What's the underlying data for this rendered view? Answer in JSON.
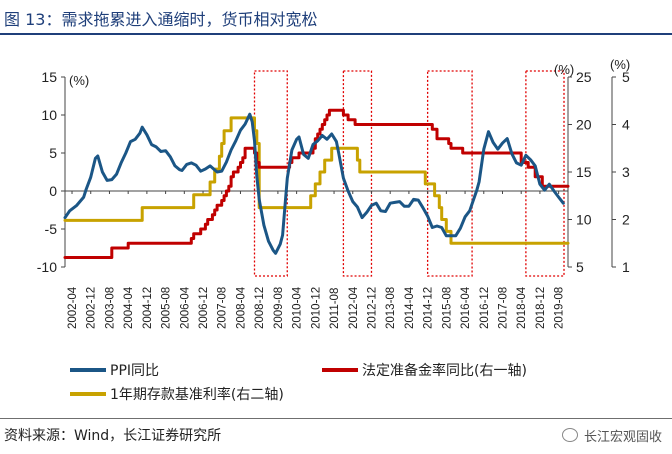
{
  "figure": {
    "title": "图 13：需求拖累进入通缩时，货币相对宽松",
    "source": "资料来源：Wind，长江证券研究所",
    "watermark": "长江宏观固收"
  },
  "chart_data": {
    "type": "line",
    "x_ticks": [
      "2002-04",
      "2002-12",
      "2003-08",
      "2004-04",
      "2004-12",
      "2005-08",
      "2006-04",
      "2006-12",
      "2007-08",
      "2008-04",
      "2008-12",
      "2009-08",
      "2010-04",
      "2010-12",
      "2011-08",
      "2012-04",
      "2012-12",
      "2013-08",
      "2014-04",
      "2014-12",
      "2015-08",
      "2016-04",
      "2016-12",
      "2017-08",
      "2018-04",
      "2018-12",
      "2019-08"
    ],
    "x_range": [
      "2002-01",
      "2019-12"
    ],
    "left_axis": {
      "unit": "(%)",
      "ticks": [
        -10,
        -5,
        0,
        5,
        10,
        15
      ],
      "range": [
        -10,
        15
      ]
    },
    "right_axis_1": {
      "unit": "(%)",
      "ticks": [
        5,
        10,
        15,
        20,
        25
      ],
      "range": [
        5,
        25
      ]
    },
    "right_axis_2": {
      "unit": "(%)",
      "ticks": [
        1,
        2,
        3,
        4,
        5
      ],
      "range": [
        1,
        5
      ]
    },
    "legend": [
      "PPI同比",
      "法定准备金率同比(右一轴)",
      "1年期存款基准利率(右二轴)"
    ],
    "colors": {
      "ppi": "#1b5686",
      "rrr": "#c00000",
      "deposit": "#c8a200",
      "boxes": "#e00000"
    },
    "deflation_periods": [
      [
        "2008-10",
        "2009-12"
      ],
      [
        "2011-12",
        "2012-12"
      ],
      [
        "2014-12",
        "2016-07"
      ],
      [
        "2018-06",
        "2019-12"
      ]
    ],
    "series": [
      {
        "name": "PPI同比",
        "axis": "left",
        "points": [
          [
            "2002-01",
            -3.5
          ],
          [
            "2002-03",
            -2.6
          ],
          [
            "2002-06",
            -1.9
          ],
          [
            "2002-09",
            -0.8
          ],
          [
            "2002-10",
            0.2
          ],
          [
            "2002-12",
            1.8
          ],
          [
            "2003-02",
            4.3
          ],
          [
            "2003-03",
            4.6
          ],
          [
            "2003-05",
            2.5
          ],
          [
            "2003-07",
            1.4
          ],
          [
            "2003-09",
            1.5
          ],
          [
            "2003-11",
            2.2
          ],
          [
            "2004-01",
            3.7
          ],
          [
            "2004-03",
            5.0
          ],
          [
            "2004-05",
            6.5
          ],
          [
            "2004-07",
            6.8
          ],
          [
            "2004-09",
            7.6
          ],
          [
            "2004-10",
            8.4
          ],
          [
            "2004-12",
            7.4
          ],
          [
            "2005-02",
            6.1
          ],
          [
            "2005-04",
            5.8
          ],
          [
            "2005-06",
            5.2
          ],
          [
            "2005-08",
            5.3
          ],
          [
            "2005-10",
            4.5
          ],
          [
            "2005-12",
            3.3
          ],
          [
            "2006-02",
            2.8
          ],
          [
            "2006-03",
            2.7
          ],
          [
            "2006-05",
            3.5
          ],
          [
            "2006-07",
            3.7
          ],
          [
            "2006-09",
            3.4
          ],
          [
            "2006-11",
            2.6
          ],
          [
            "2007-01",
            2.9
          ],
          [
            "2007-03",
            3.3
          ],
          [
            "2007-06",
            2.5
          ],
          [
            "2007-08",
            2.6
          ],
          [
            "2007-10",
            3.8
          ],
          [
            "2007-12",
            5.4
          ],
          [
            "2008-02",
            6.6
          ],
          [
            "2008-04",
            8.0
          ],
          [
            "2008-06",
            8.8
          ],
          [
            "2008-08",
            10.1
          ],
          [
            "2008-09",
            9.1
          ],
          [
            "2008-10",
            6.6
          ],
          [
            "2008-11",
            2.0
          ],
          [
            "2008-12",
            -1.1
          ],
          [
            "2009-02",
            -4.5
          ],
          [
            "2009-04",
            -6.6
          ],
          [
            "2009-06",
            -7.8
          ],
          [
            "2009-07",
            -8.2
          ],
          [
            "2009-09",
            -7.0
          ],
          [
            "2009-10",
            -5.8
          ],
          [
            "2009-11",
            -2.1
          ],
          [
            "2009-12",
            1.7
          ],
          [
            "2010-02",
            5.4
          ],
          [
            "2010-04",
            6.8
          ],
          [
            "2010-05",
            7.1
          ],
          [
            "2010-07",
            4.8
          ],
          [
            "2010-09",
            4.3
          ],
          [
            "2010-11",
            6.1
          ],
          [
            "2011-01",
            6.6
          ],
          [
            "2011-03",
            7.3
          ],
          [
            "2011-05",
            6.8
          ],
          [
            "2011-07",
            7.5
          ],
          [
            "2011-09",
            6.5
          ],
          [
            "2011-10",
            5.0
          ],
          [
            "2011-12",
            1.7
          ],
          [
            "2012-02",
            0.0
          ],
          [
            "2012-04",
            -1.4
          ],
          [
            "2012-06",
            -2.1
          ],
          [
            "2012-08",
            -3.5
          ],
          [
            "2012-10",
            -2.8
          ],
          [
            "2012-12",
            -1.9
          ],
          [
            "2013-02",
            -1.6
          ],
          [
            "2013-04",
            -2.6
          ],
          [
            "2013-06",
            -2.7
          ],
          [
            "2013-08",
            -1.6
          ],
          [
            "2013-10",
            -1.5
          ],
          [
            "2013-12",
            -1.4
          ],
          [
            "2014-02",
            -2.0
          ],
          [
            "2014-04",
            -2.0
          ],
          [
            "2014-06",
            -1.1
          ],
          [
            "2014-08",
            -1.2
          ],
          [
            "2014-10",
            -2.2
          ],
          [
            "2014-12",
            -3.3
          ],
          [
            "2015-02",
            -4.8
          ],
          [
            "2015-04",
            -4.6
          ],
          [
            "2015-06",
            -4.8
          ],
          [
            "2015-08",
            -5.9
          ],
          [
            "2015-10",
            -5.9
          ],
          [
            "2015-12",
            -5.9
          ],
          [
            "2016-02",
            -4.9
          ],
          [
            "2016-04",
            -3.4
          ],
          [
            "2016-06",
            -2.6
          ],
          [
            "2016-08",
            -0.8
          ],
          [
            "2016-09",
            0.1
          ],
          [
            "2016-10",
            1.2
          ],
          [
            "2016-11",
            3.3
          ],
          [
            "2016-12",
            5.5
          ],
          [
            "2017-02",
            7.8
          ],
          [
            "2017-04",
            6.4
          ],
          [
            "2017-06",
            5.5
          ],
          [
            "2017-08",
            6.3
          ],
          [
            "2017-10",
            6.9
          ],
          [
            "2017-12",
            4.9
          ],
          [
            "2018-02",
            3.7
          ],
          [
            "2018-04",
            3.4
          ],
          [
            "2018-06",
            4.7
          ],
          [
            "2018-08",
            4.1
          ],
          [
            "2018-10",
            3.3
          ],
          [
            "2018-12",
            0.9
          ],
          [
            "2019-02",
            0.1
          ],
          [
            "2019-04",
            0.9
          ],
          [
            "2019-06",
            0.0
          ],
          [
            "2019-08",
            -0.8
          ],
          [
            "2019-10",
            -1.6
          ]
        ]
      },
      {
        "name": "法定准备金率同比(右一轴)",
        "axis": "right1",
        "points": [
          [
            "2002-01",
            6.0
          ],
          [
            "2003-09",
            6.0
          ],
          [
            "2003-09",
            7.0
          ],
          [
            "2004-04",
            7.0
          ],
          [
            "2004-04",
            7.5
          ],
          [
            "2006-07",
            7.5
          ],
          [
            "2006-07",
            8.0
          ],
          [
            "2006-08",
            8.0
          ],
          [
            "2006-08",
            8.5
          ],
          [
            "2006-11",
            8.5
          ],
          [
            "2006-11",
            9.0
          ],
          [
            "2007-01",
            9.0
          ],
          [
            "2007-01",
            9.5
          ],
          [
            "2007-02",
            9.5
          ],
          [
            "2007-02",
            10.0
          ],
          [
            "2007-04",
            10.0
          ],
          [
            "2007-04",
            10.5
          ],
          [
            "2007-05",
            10.5
          ],
          [
            "2007-05",
            11.0
          ],
          [
            "2007-06",
            11.0
          ],
          [
            "2007-06",
            11.5
          ],
          [
            "2007-08",
            11.5
          ],
          [
            "2007-08",
            12.0
          ],
          [
            "2007-09",
            12.0
          ],
          [
            "2007-09",
            12.5
          ],
          [
            "2007-10",
            12.5
          ],
          [
            "2007-10",
            13.0
          ],
          [
            "2007-11",
            13.0
          ],
          [
            "2007-11",
            13.5
          ],
          [
            "2007-12",
            13.5
          ],
          [
            "2007-12",
            14.5
          ],
          [
            "2008-01",
            14.5
          ],
          [
            "2008-01",
            15.0
          ],
          [
            "2008-03",
            15.0
          ],
          [
            "2008-03",
            15.5
          ],
          [
            "2008-04",
            15.5
          ],
          [
            "2008-04",
            16.0
          ],
          [
            "2008-05",
            16.0
          ],
          [
            "2008-05",
            16.5
          ],
          [
            "2008-06",
            16.5
          ],
          [
            "2008-06",
            17.5
          ],
          [
            "2008-09",
            17.5
          ],
          [
            "2008-09",
            17.5
          ],
          [
            "2008-10",
            17.5
          ],
          [
            "2008-10",
            17.0
          ],
          [
            "2008-11",
            17.0
          ],
          [
            "2008-11",
            16.0
          ],
          [
            "2008-12",
            16.0
          ],
          [
            "2008-12",
            15.5
          ],
          [
            "2010-01",
            15.5
          ],
          [
            "2010-01",
            16.0
          ],
          [
            "2010-02",
            16.0
          ],
          [
            "2010-02",
            16.5
          ],
          [
            "2010-05",
            16.5
          ],
          [
            "2010-05",
            17.0
          ],
          [
            "2010-11",
            17.0
          ],
          [
            "2010-11",
            17.5
          ],
          [
            "2010-12",
            17.5
          ],
          [
            "2010-12",
            18.5
          ],
          [
            "2011-01",
            18.5
          ],
          [
            "2011-01",
            19.0
          ],
          [
            "2011-02",
            19.0
          ],
          [
            "2011-02",
            19.5
          ],
          [
            "2011-03",
            19.5
          ],
          [
            "2011-03",
            20.0
          ],
          [
            "2011-04",
            20.0
          ],
          [
            "2011-04",
            20.5
          ],
          [
            "2011-05",
            20.5
          ],
          [
            "2011-05",
            21.0
          ],
          [
            "2011-06",
            21.0
          ],
          [
            "2011-06",
            21.5
          ],
          [
            "2011-12",
            21.5
          ],
          [
            "2011-12",
            21.0
          ],
          [
            "2012-02",
            21.0
          ],
          [
            "2012-02",
            20.5
          ],
          [
            "2012-05",
            20.5
          ],
          [
            "2012-05",
            20.0
          ],
          [
            "2015-02",
            20.0
          ],
          [
            "2015-02",
            19.5
          ],
          [
            "2015-04",
            19.5
          ],
          [
            "2015-04",
            18.5
          ],
          [
            "2015-09",
            18.5
          ],
          [
            "2015-09",
            18.0
          ],
          [
            "2015-10",
            18.0
          ],
          [
            "2015-10",
            17.5
          ],
          [
            "2016-03",
            17.5
          ],
          [
            "2016-03",
            17.0
          ],
          [
            "2018-04",
            17.0
          ],
          [
            "2018-04",
            16.0
          ],
          [
            "2018-07",
            16.0
          ],
          [
            "2018-07",
            15.5
          ],
          [
            "2018-10",
            15.5
          ],
          [
            "2018-10",
            14.5
          ],
          [
            "2019-01",
            14.5
          ],
          [
            "2019-01",
            13.5
          ],
          [
            "2019-12",
            13.5
          ]
        ]
      },
      {
        "name": "1年期存款基准利率(右二轴)",
        "axis": "right2",
        "points": [
          [
            "2002-01",
            1.98
          ],
          [
            "2004-10",
            1.98
          ],
          [
            "2004-10",
            2.25
          ],
          [
            "2006-08",
            2.25
          ],
          [
            "2006-08",
            2.52
          ],
          [
            "2007-03",
            2.52
          ],
          [
            "2007-03",
            2.79
          ],
          [
            "2007-05",
            2.79
          ],
          [
            "2007-05",
            3.06
          ],
          [
            "2007-07",
            3.06
          ],
          [
            "2007-07",
            3.33
          ],
          [
            "2007-08",
            3.33
          ],
          [
            "2007-08",
            3.6
          ],
          [
            "2007-09",
            3.6
          ],
          [
            "2007-09",
            3.87
          ],
          [
            "2007-12",
            3.87
          ],
          [
            "2007-12",
            4.14
          ],
          [
            "2008-10",
            4.14
          ],
          [
            "2008-10",
            3.87
          ],
          [
            "2008-11",
            3.87
          ],
          [
            "2008-11",
            3.6
          ],
          [
            "2008-12",
            3.6
          ],
          [
            "2008-12",
            2.52
          ],
          [
            "2008-12",
            2.25
          ],
          [
            "2010-10",
            2.25
          ],
          [
            "2010-10",
            2.5
          ],
          [
            "2010-12",
            2.5
          ],
          [
            "2010-12",
            2.75
          ],
          [
            "2011-02",
            2.75
          ],
          [
            "2011-02",
            3.0
          ],
          [
            "2011-04",
            3.0
          ],
          [
            "2011-04",
            3.25
          ],
          [
            "2011-07",
            3.25
          ],
          [
            "2011-07",
            3.5
          ],
          [
            "2012-06",
            3.5
          ],
          [
            "2012-06",
            3.25
          ],
          [
            "2012-07",
            3.25
          ],
          [
            "2012-07",
            3.0
          ],
          [
            "2014-11",
            3.0
          ],
          [
            "2014-11",
            2.75
          ],
          [
            "2015-03",
            2.75
          ],
          [
            "2015-03",
            2.5
          ],
          [
            "2015-05",
            2.5
          ],
          [
            "2015-05",
            2.25
          ],
          [
            "2015-06",
            2.25
          ],
          [
            "2015-06",
            2.0
          ],
          [
            "2015-08",
            2.0
          ],
          [
            "2015-08",
            1.75
          ],
          [
            "2015-10",
            1.75
          ],
          [
            "2015-10",
            1.5
          ],
          [
            "2019-12",
            1.5
          ]
        ]
      }
    ]
  }
}
